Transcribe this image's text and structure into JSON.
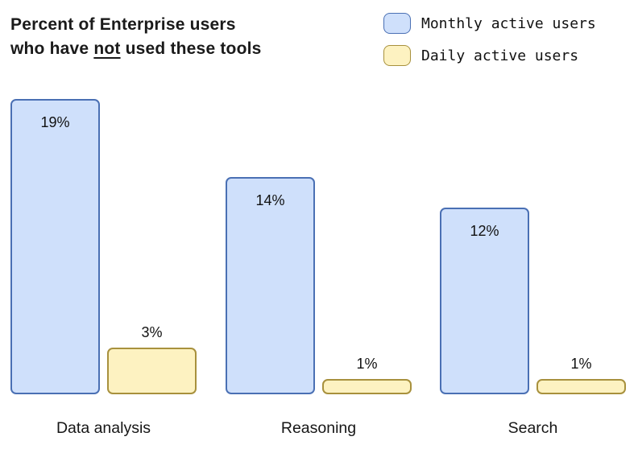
{
  "title": {
    "line1": "Percent of Enterprise users",
    "line2_prefix": "who have ",
    "line2_underlined": "not",
    "line2_suffix": " used these tools"
  },
  "legend": {
    "items": [
      {
        "label": "Monthly active users",
        "fill": "#cfe0fb",
        "border": "#4a70b4"
      },
      {
        "label": "Daily active users",
        "fill": "#fdf2c1",
        "border": "#a8913d"
      }
    ]
  },
  "chart_data": {
    "type": "bar",
    "title": "Percent of Enterprise users who have not used these tools",
    "categories": [
      "Data analysis",
      "Reasoning",
      "Search"
    ],
    "series": [
      {
        "name": "Monthly active users",
        "values": [
          19,
          14,
          12
        ],
        "labels": [
          "19%",
          "14%",
          "12%"
        ],
        "fill": "#cfe0fb",
        "border": "#4a70b4",
        "value_label_position": "inside-top"
      },
      {
        "name": "Daily active users",
        "values": [
          3,
          1,
          1
        ],
        "labels": [
          "3%",
          "1%",
          "1%"
        ],
        "fill": "#fdf2c1",
        "border": "#a8913d",
        "value_label_position": "above"
      }
    ],
    "unit": "%",
    "ylim": [
      0,
      19
    ],
    "grid": false,
    "axes_visible": false,
    "legend_position": "top-right"
  },
  "colors": {
    "background": "#ffffff",
    "text": "#111111",
    "monthly_fill": "#cfe0fb",
    "monthly_border": "#4a70b4",
    "daily_fill": "#fdf2c1",
    "daily_border": "#a8913d"
  }
}
